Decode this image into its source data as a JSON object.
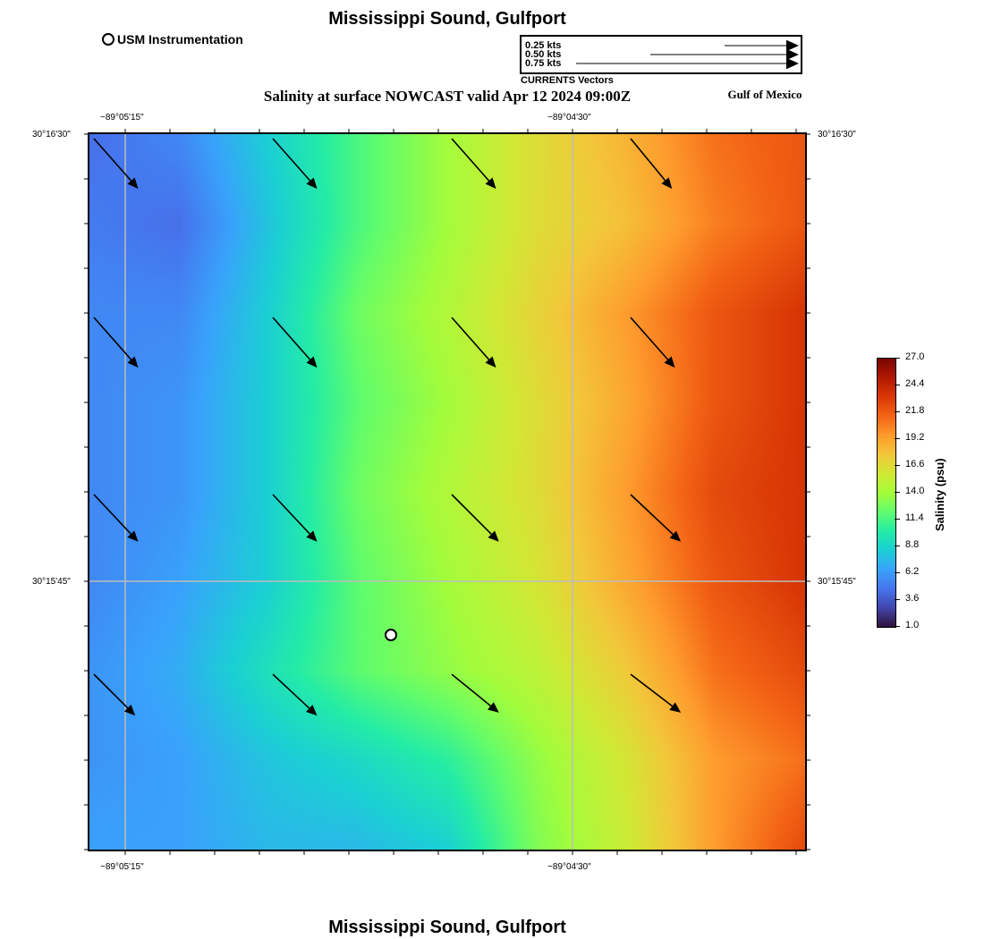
{
  "header": {
    "title": "Mississippi Sound, Gulfport",
    "subtitle": "Salinity at surface NOWCAST valid Apr 12 2024 09:00Z",
    "region": "Gulf of Mexico",
    "station_legend": "USM Instrumentation"
  },
  "footer": {
    "title": "Mississippi Sound, Gulfport"
  },
  "vector_legend": {
    "caption": "CURRENTS Vectors",
    "entries": [
      {
        "label": "0.25 kts",
        "speed_kts": 0.25
      },
      {
        "label": "0.50 kts",
        "speed_kts": 0.5
      },
      {
        "label": "0.75 kts",
        "speed_kts": 0.75
      }
    ]
  },
  "axes": {
    "lon_top": [
      "−89°05'15\"",
      "−89°04'30\""
    ],
    "lon_bottom": [
      "−89°05'15\"",
      "−89°04'30\""
    ],
    "lat_left": [
      "30°16'30\"",
      "30°15'45\""
    ],
    "lat_right": [
      "30°16'30\"",
      "30°15'45\""
    ]
  },
  "colorbar": {
    "title": "Salinity (psu)",
    "ticks": [
      "27.0",
      "24.4",
      "21.8",
      "19.2",
      "16.6",
      "14.0",
      "11.4",
      "8.8",
      "6.2",
      "3.6",
      "1.0"
    ],
    "min": 1.0,
    "max": 27.0,
    "colors": [
      "#30123b",
      "#4145ab",
      "#4675ed",
      "#39a2fc",
      "#1bcfd4",
      "#24eca6",
      "#61fc6c",
      "#a4fc3b",
      "#d1e834",
      "#f3c63a",
      "#fe9b2d",
      "#f36315",
      "#d93806",
      "#b11901",
      "#7a0402"
    ]
  },
  "map": {
    "salinity_grid": [
      [
        4.5,
        5.5,
        8.5,
        11.5,
        14.0,
        16.5,
        18.5,
        21.0,
        22.0
      ],
      [
        5.0,
        4.5,
        8.0,
        11.5,
        14.0,
        16.5,
        18.0,
        20.5,
        22.0
      ],
      [
        5.5,
        5.5,
        8.5,
        12.5,
        14.5,
        17.0,
        19.5,
        22.0,
        23.5
      ],
      [
        5.5,
        6.0,
        8.5,
        12.0,
        14.0,
        16.5,
        19.0,
        22.0,
        23.5
      ],
      [
        5.5,
        6.0,
        8.5,
        12.5,
        14.5,
        16.5,
        19.5,
        22.5,
        23.5
      ],
      [
        5.5,
        6.5,
        8.5,
        12.0,
        14.0,
        16.0,
        19.0,
        22.0,
        23.5
      ],
      [
        6.0,
        7.0,
        9.5,
        12.0,
        13.5,
        15.0,
        17.5,
        21.0,
        22.5
      ],
      [
        6.0,
        6.5,
        8.0,
        9.0,
        10.5,
        13.5,
        16.0,
        19.5,
        21.0
      ],
      [
        6.5,
        6.5,
        7.5,
        7.5,
        8.5,
        13.0,
        15.5,
        19.5,
        22.5
      ]
    ],
    "current_vectors": [
      {
        "u": 0.15,
        "v": -0.17
      },
      {
        "u": 0.15,
        "v": -0.17
      },
      {
        "u": 0.15,
        "v": -0.17
      },
      {
        "u": 0.14,
        "v": -0.17
      },
      {
        "u": 0.15,
        "v": -0.17
      },
      {
        "u": 0.15,
        "v": -0.17
      },
      {
        "u": 0.15,
        "v": -0.17
      },
      {
        "u": 0.15,
        "v": -0.17
      },
      {
        "u": 0.15,
        "v": -0.16
      },
      {
        "u": 0.15,
        "v": -0.16
      },
      {
        "u": 0.16,
        "v": -0.16
      },
      {
        "u": 0.17,
        "v": -0.16
      },
      {
        "u": 0.14,
        "v": -0.14
      },
      {
        "u": 0.15,
        "v": -0.14
      },
      {
        "u": 0.16,
        "v": -0.13
      },
      {
        "u": 0.17,
        "v": -0.13
      }
    ]
  }
}
